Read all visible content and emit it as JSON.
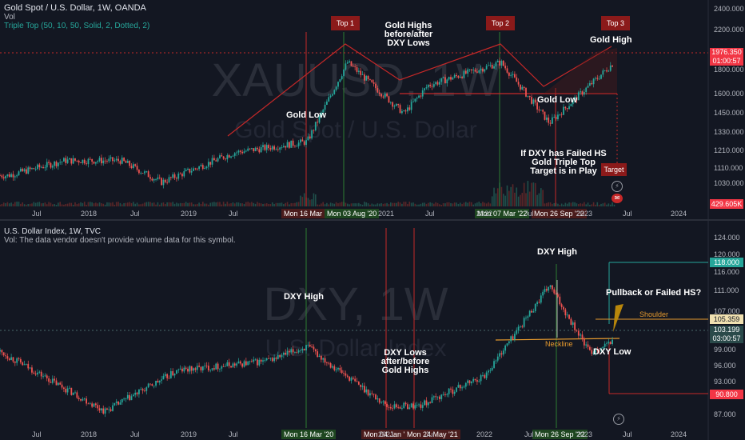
{
  "top_panel": {
    "title": "Gold Spot / U.S. Dollar, 1W, OANDA",
    "vol_label": "Vol",
    "indicator": "Triple Top (50, 10, 50, Solid, 2, Dotted, 2)",
    "watermark_symbol": "XAUUSD, 1W",
    "watermark_name": "Gold Spot / U.S. Dollar",
    "price_ticks": [
      "2400.000",
      "2200.000",
      "1800.000",
      "1600.000",
      "1450.000",
      "1330.000",
      "1210.000",
      "1110.000",
      "1030.000"
    ],
    "current_price": "1976.350",
    "countdown": "01:00:57",
    "vol_badge": "429.605K",
    "annotations": {
      "top1": "Top 1",
      "top2": "Top 2",
      "top3": "Top 3",
      "gold_highs_line1": "Gold Highs",
      "gold_highs_line2": "before/after",
      "gold_highs_line3": "DXY Lows",
      "gold_high": "Gold High",
      "gold_low_left": "Gold Low",
      "gold_low_right": "Gold Low",
      "fail_line1": "If DXY has Failed HS",
      "fail_line2": "Gold Triple Top",
      "fail_line3": "Target is in Play",
      "target": "Target"
    },
    "date_markers": [
      "Mon 16 Mar '20",
      "Mon 03 Aug '20",
      "Mon 07 Mar '22",
      "Mon 26 Sep '22"
    ]
  },
  "bottom_panel": {
    "title": "U.S. Dollar Index, 1W, TVC",
    "vol_note": "Vol: The data vendor doesn't provide volume data for this symbol.",
    "watermark_symbol": "DXY, 1W",
    "watermark_name": "U.S. Dollar Index",
    "price_ticks": [
      "124.000",
      "120.000",
      "116.000",
      "111.000",
      "107.000",
      "99.000",
      "96.000",
      "93.000",
      "87.000"
    ],
    "level_high": "118.000",
    "level_shoulder": "105.359",
    "current_price": "103.199",
    "countdown": "03:00:57",
    "level_low": "90.800",
    "annotations": {
      "dxy_high_left": "DXY High",
      "dxy_high_top": "DXY High",
      "dxy_lows_line1": "DXY Lows",
      "dxy_lows_line2": "after/before",
      "dxy_lows_line3": "Gold Highs",
      "pullback": "Pullback or Failed HS?",
      "shoulder": "Shoulder",
      "neckline": "Neckline",
      "dxy_low": "DXY Low"
    },
    "date_markers": [
      "Mon 16 Mar '20",
      "Mon 04 Jan '21",
      "Mon 24 May '21",
      "Mon 26 Sep '22"
    ]
  },
  "time_axis": [
    "Jul",
    "2018",
    "Jul",
    "2019",
    "Jul",
    "2021",
    "Jul",
    "2022",
    "Jul",
    "2023",
    "Jul",
    "2024"
  ],
  "colors": {
    "background": "#131722",
    "bull": "#26a69a",
    "bear": "#ef5350",
    "annotation_box": "#8b1a1a",
    "green_line": "#2e7d32",
    "red_line": "#c62828",
    "orange": "#e69a2e"
  },
  "chart_data": [
    {
      "type": "candlestick",
      "title": "Gold Spot / U.S. Dollar, 1W, OANDA",
      "x": [
        "2017-02",
        "2017-09",
        "2018-04",
        "2018-09",
        "2019-06",
        "2020-03",
        "2020-08",
        "2021-03",
        "2021-06",
        "2022-03",
        "2022-09",
        "2023-05"
      ],
      "values": [
        1230,
        1340,
        1340,
        1180,
        1400,
        1480,
        2070,
        1690,
        1900,
        2070,
        1620,
        2070
      ],
      "current": 1976.35,
      "ylim": [
        1000,
        2450
      ]
    },
    {
      "type": "candlestick",
      "title": "U.S. Dollar Index, 1W, TVC",
      "x": [
        "2017-01",
        "2018-02",
        "2018-11",
        "2019-10",
        "2020-03",
        "2021-01",
        "2021-05",
        "2022-01",
        "2022-09",
        "2023-02",
        "2023-05"
      ],
      "values": [
        101,
        88.5,
        97,
        99,
        102,
        89.5,
        89.7,
        96,
        114.8,
        100.8,
        103.2
      ],
      "current": 103.199,
      "ylim": [
        85,
        126
      ]
    }
  ]
}
